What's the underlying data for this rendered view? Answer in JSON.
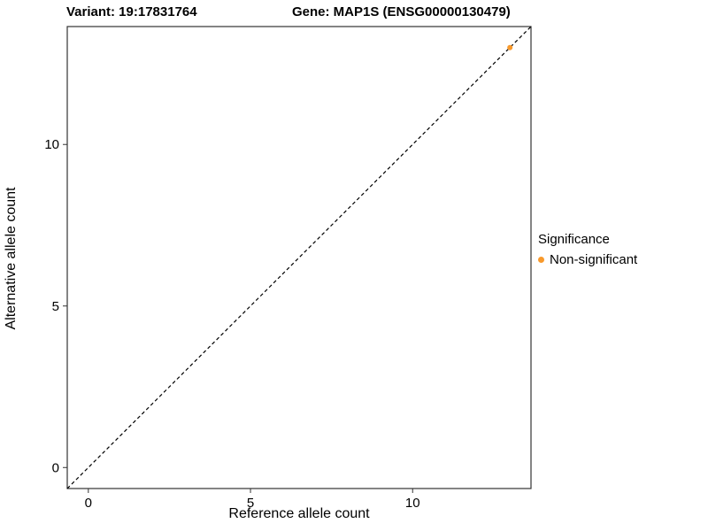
{
  "chart_data": {
    "type": "scatter",
    "title_left": "Variant: 19:17831764",
    "title_right": "Gene: MAP1S (ENSG00000130479)",
    "xlabel": "Reference allele count",
    "ylabel": "Alternative allele count",
    "xlim": [
      -0.65,
      13.65
    ],
    "ylim": [
      -0.65,
      13.65
    ],
    "xticks": [
      0,
      5,
      10
    ],
    "yticks": [
      0,
      5,
      10
    ],
    "grid": false,
    "panel_border_color": "#333333",
    "identity_line": {
      "style": "dashed",
      "from": -0.65,
      "to": 13.65,
      "color": "#000000"
    },
    "series": [
      {
        "name": "Non-significant",
        "color": "#F8992C",
        "points": [
          {
            "x": 13,
            "y": 13
          }
        ]
      }
    ],
    "legend_title": "Significance",
    "legend_position": "right"
  }
}
